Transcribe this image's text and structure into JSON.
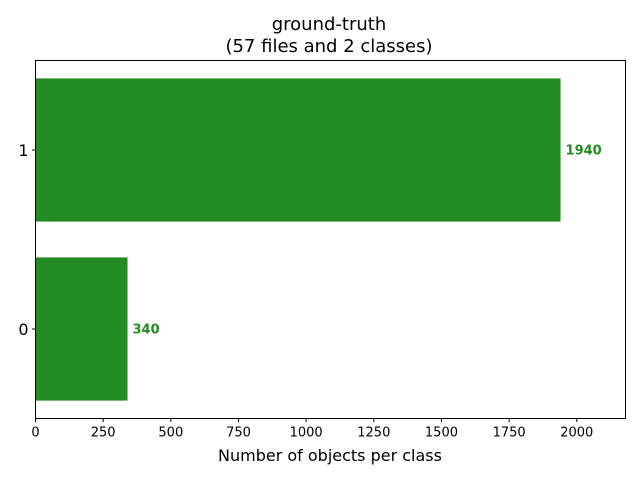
{
  "chart_data": {
    "type": "bar",
    "orientation": "horizontal",
    "title": "ground-truth",
    "subtitle": "(57 files and 2 classes)",
    "xlabel": "Number of objects per class",
    "ylabel": "",
    "categories": [
      "0",
      "1"
    ],
    "values": [
      340,
      1940
    ],
    "data_labels": [
      "340",
      "1940"
    ],
    "xlim": [
      0,
      2180
    ],
    "xticks": [
      0,
      250,
      500,
      750,
      1000,
      1250,
      1500,
      1750,
      2000
    ],
    "xtick_labels": [
      "0",
      "250",
      "500",
      "750",
      "1000",
      "1250",
      "1500",
      "1750",
      "2000"
    ],
    "grid": false,
    "legend": "none",
    "bar_color": "#228B22",
    "label_color": "#228B22"
  }
}
